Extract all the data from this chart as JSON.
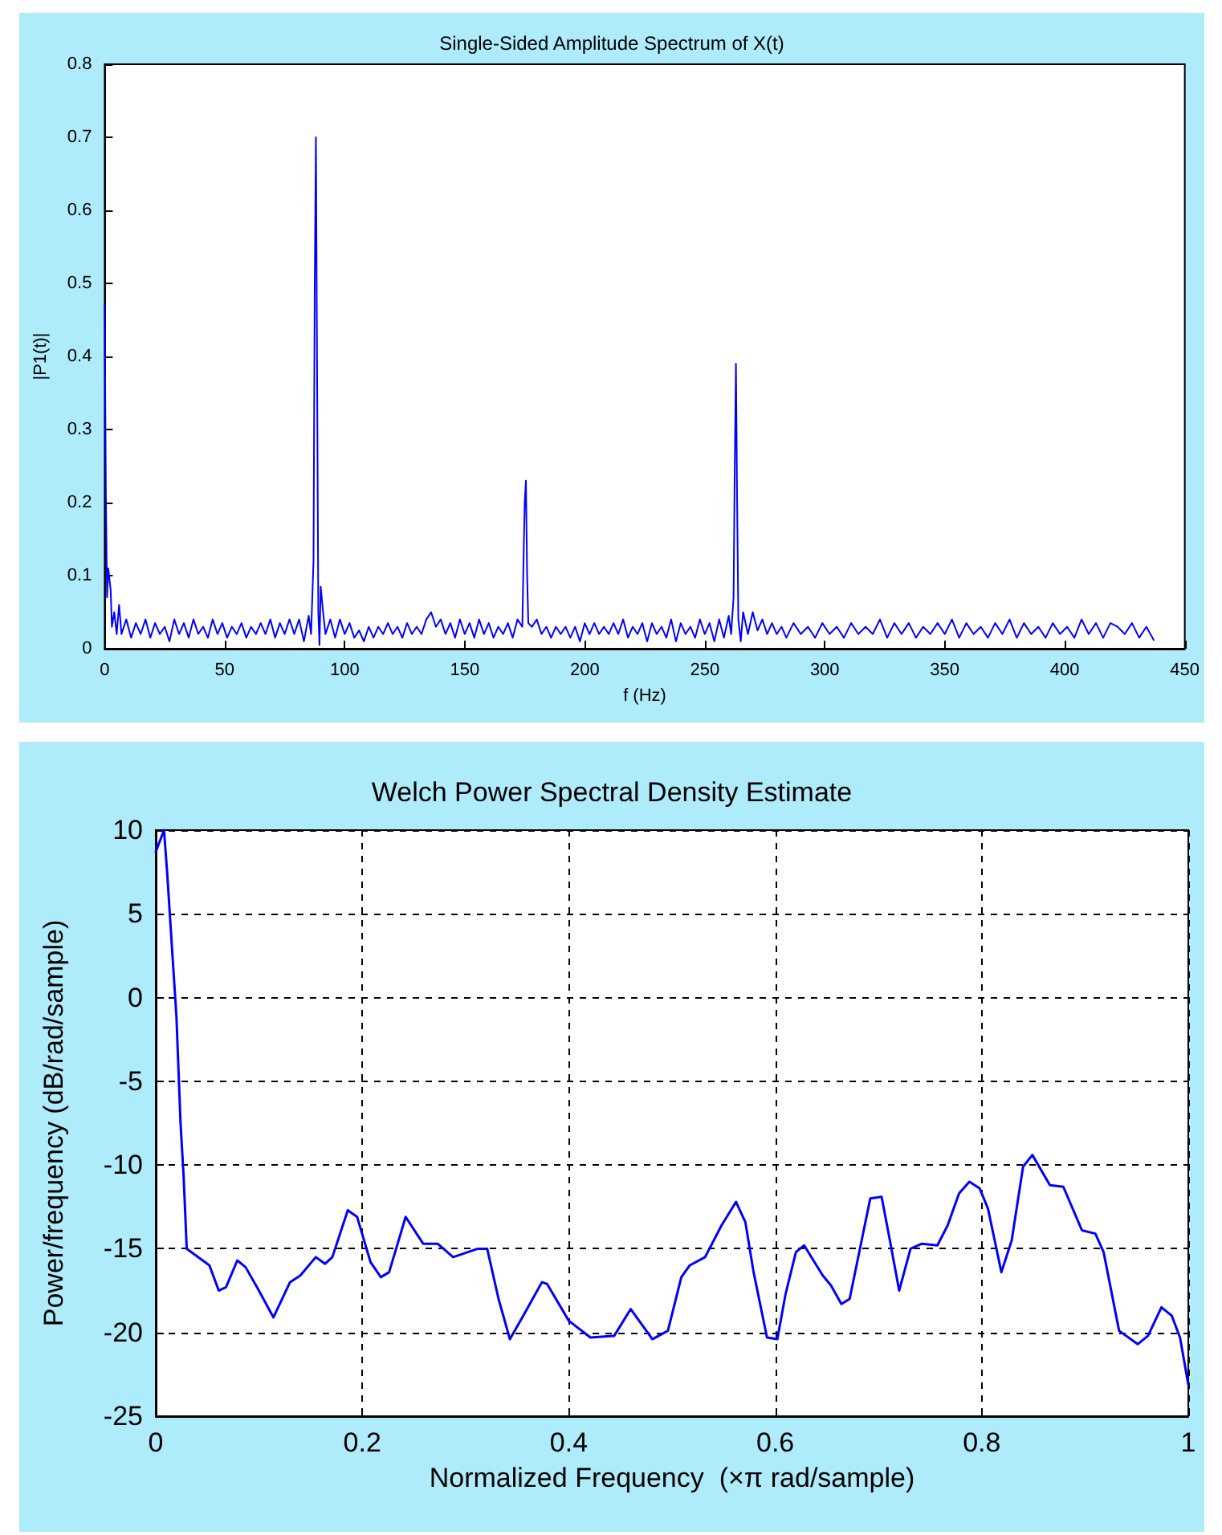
{
  "chart_data": [
    {
      "type": "line",
      "title": "Single-Sided Amplitude Spectrum of X(t)",
      "xlabel": "f (Hz)",
      "ylabel": "|P1(t)|",
      "xlim": [
        0,
        450
      ],
      "xticks": [
        0,
        50,
        100,
        150,
        200,
        250,
        300,
        350,
        400,
        450
      ],
      "ylim": [
        0,
        0.8
      ],
      "yticks": [
        0,
        0.1,
        0.2,
        0.3,
        0.4,
        0.5,
        0.6,
        0.7,
        0.8
      ],
      "grid": false,
      "marker": "none",
      "line_style": "solid",
      "series": [
        {
          "color": "#0000ff",
          "x": [
            0,
            0.5,
            1,
            1.5,
            2.5,
            3,
            4,
            5,
            6,
            7,
            9,
            11,
            13,
            15,
            17,
            19,
            21,
            23,
            25,
            27,
            29,
            31,
            33,
            35,
            37,
            39,
            41,
            43,
            45,
            47,
            49,
            51,
            53,
            55,
            57,
            59,
            61,
            63,
            65,
            67,
            69,
            71,
            73,
            75,
            77,
            79,
            81,
            83,
            85,
            86,
            87,
            87.5,
            88,
            88.5,
            89,
            89.5,
            90,
            91,
            92,
            94,
            96,
            98,
            100,
            102,
            104,
            106,
            108,
            110,
            112,
            114,
            116,
            118,
            120,
            122,
            124,
            126,
            128,
            130,
            132,
            134,
            136,
            138,
            140,
            142,
            144,
            146,
            148,
            150,
            152,
            154,
            156,
            158,
            160,
            162,
            164,
            166,
            168,
            170,
            172,
            174,
            174.5,
            175,
            175.5,
            176,
            176.5,
            178,
            180,
            182,
            184,
            186,
            188,
            190,
            192,
            194,
            196,
            198,
            200,
            202,
            204,
            206,
            208,
            210,
            212,
            214,
            216,
            218,
            220,
            222,
            224,
            226,
            228,
            230,
            232,
            234,
            236,
            238,
            240,
            242,
            244,
            246,
            248,
            250,
            252,
            254,
            256,
            258,
            260,
            261,
            262,
            262.5,
            263,
            263.5,
            264,
            265,
            266,
            268,
            270,
            272,
            274,
            276,
            278,
            280,
            282,
            284,
            287,
            290,
            293,
            296,
            299,
            302,
            305,
            308,
            311,
            314,
            317,
            320,
            323,
            326,
            329,
            332,
            335,
            338,
            341,
            344,
            347,
            350,
            353,
            356,
            359,
            362,
            365,
            368,
            371,
            374,
            377,
            380,
            383,
            386,
            389,
            392,
            395,
            398,
            401,
            404,
            407,
            410,
            413,
            416,
            419,
            422,
            425,
            428,
            431,
            434,
            437
          ],
          "values": [
            0.47,
            0.21,
            0.07,
            0.11,
            0.08,
            0.03,
            0.05,
            0.02,
            0.06,
            0.02,
            0.04,
            0.015,
            0.035,
            0.02,
            0.04,
            0.015,
            0.035,
            0.02,
            0.03,
            0.01,
            0.04,
            0.02,
            0.035,
            0.015,
            0.04,
            0.02,
            0.03,
            0.015,
            0.04,
            0.02,
            0.035,
            0.015,
            0.03,
            0.02,
            0.035,
            0.015,
            0.03,
            0.02,
            0.035,
            0.02,
            0.04,
            0.015,
            0.035,
            0.02,
            0.04,
            0.02,
            0.04,
            0.01,
            0.045,
            0.02,
            0.12,
            0.49,
            0.7,
            0.38,
            0.05,
            0.005,
            0.085,
            0.05,
            0.02,
            0.04,
            0.015,
            0.04,
            0.02,
            0.035,
            0.015,
            0.025,
            0.01,
            0.03,
            0.015,
            0.03,
            0.02,
            0.035,
            0.02,
            0.03,
            0.015,
            0.035,
            0.02,
            0.03,
            0.02,
            0.04,
            0.05,
            0.03,
            0.04,
            0.02,
            0.035,
            0.015,
            0.04,
            0.02,
            0.035,
            0.015,
            0.04,
            0.02,
            0.035,
            0.015,
            0.03,
            0.02,
            0.035,
            0.015,
            0.04,
            0.03,
            0.12,
            0.2,
            0.23,
            0.1,
            0.035,
            0.03,
            0.04,
            0.02,
            0.03,
            0.015,
            0.03,
            0.02,
            0.03,
            0.015,
            0.03,
            0.01,
            0.035,
            0.02,
            0.035,
            0.02,
            0.03,
            0.02,
            0.035,
            0.02,
            0.04,
            0.015,
            0.03,
            0.02,
            0.035,
            0.01,
            0.035,
            0.02,
            0.03,
            0.015,
            0.04,
            0.01,
            0.035,
            0.02,
            0.03,
            0.015,
            0.04,
            0.02,
            0.035,
            0.01,
            0.04,
            0.015,
            0.045,
            0.02,
            0.07,
            0.245,
            0.39,
            0.2,
            0.04,
            0.01,
            0.05,
            0.02,
            0.05,
            0.025,
            0.04,
            0.02,
            0.035,
            0.02,
            0.03,
            0.015,
            0.035,
            0.02,
            0.03,
            0.015,
            0.035,
            0.02,
            0.03,
            0.015,
            0.035,
            0.02,
            0.03,
            0.02,
            0.04,
            0.015,
            0.035,
            0.02,
            0.035,
            0.015,
            0.03,
            0.02,
            0.035,
            0.02,
            0.04,
            0.015,
            0.035,
            0.02,
            0.03,
            0.015,
            0.035,
            0.02,
            0.04,
            0.015,
            0.035,
            0.02,
            0.03,
            0.015,
            0.035,
            0.02,
            0.03,
            0.015,
            0.04,
            0.02,
            0.035,
            0.015,
            0.035,
            0.03,
            0.02,
            0.035,
            0.015,
            0.03,
            0.012
          ]
        }
      ]
    },
    {
      "type": "line",
      "title": "Welch Power Spectral Density Estimate",
      "xlabel": "Normalized Frequency  (×π rad/sample)",
      "ylabel": "Power/frequency (dB/rad/sample)",
      "xlim": [
        0,
        1
      ],
      "xticks": [
        0,
        0.2,
        0.4,
        0.6,
        0.8,
        1
      ],
      "ylim": [
        -25,
        10
      ],
      "yticks": [
        -25,
        -20,
        -15,
        -10,
        -5,
        0,
        5,
        10
      ],
      "grid": true,
      "marker": "none",
      "line_style": "solid",
      "series": [
        {
          "color": "#0000ff",
          "x": [
            0,
            0.008,
            0.011,
            0.016,
            0.02,
            0.024,
            0.027,
            0.03,
            0.052,
            0.061,
            0.068,
            0.079,
            0.087,
            0.099,
            0.114,
            0.13,
            0.14,
            0.155,
            0.164,
            0.171,
            0.186,
            0.195,
            0.208,
            0.218,
            0.226,
            0.242,
            0.259,
            0.273,
            0.288,
            0.312,
            0.321,
            0.332,
            0.343,
            0.356,
            0.374,
            0.379,
            0.4,
            0.421,
            0.444,
            0.46,
            0.481,
            0.496,
            0.509,
            0.517,
            0.532,
            0.548,
            0.562,
            0.571,
            0.579,
            0.592,
            0.602,
            0.61,
            0.62,
            0.628,
            0.646,
            0.654,
            0.664,
            0.672,
            0.682,
            0.692,
            0.703,
            0.711,
            0.72,
            0.731,
            0.742,
            0.757,
            0.767,
            0.778,
            0.788,
            0.798,
            0.806,
            0.819,
            0.829,
            0.84,
            0.849,
            0.866,
            0.879,
            0.897,
            0.91,
            0.918,
            0.933,
            0.951,
            0.961,
            0.974,
            0.984,
            0.992,
            1
          ],
          "values": [
            8.7,
            10,
            7.5,
            2.7,
            -1.1,
            -7.5,
            -10.7,
            -15,
            -16,
            -17.5,
            -17.3,
            -15.7,
            -16.1,
            -17.4,
            -19.1,
            -17,
            -16.6,
            -15.5,
            -15.9,
            -15.5,
            -12.7,
            -13.1,
            -15.8,
            -16.7,
            -16.4,
            -13.1,
            -14.7,
            -14.7,
            -15.5,
            -15,
            -15,
            -18,
            -20.4,
            -19,
            -17,
            -17.1,
            -19.3,
            -20.3,
            -20.2,
            -18.6,
            -20.4,
            -19.9,
            -16.7,
            -16,
            -15.5,
            -13.6,
            -12.2,
            -13.4,
            -16.4,
            -20.3,
            -20.4,
            -17.7,
            -15.2,
            -14.8,
            -16.6,
            -17.2,
            -18.3,
            -18,
            -15,
            -12,
            -11.9,
            -14.5,
            -17.5,
            -15,
            -14.7,
            -14.8,
            -13.6,
            -11.7,
            -11,
            -11.4,
            -12.6,
            -16.4,
            -14.5,
            -10.1,
            -9.4,
            -11.2,
            -11.3,
            -13.9,
            -14.1,
            -15.2,
            -19.9,
            -20.7,
            -20.2,
            -18.5,
            -19,
            -20.3,
            -23.1
          ]
        }
      ]
    }
  ]
}
